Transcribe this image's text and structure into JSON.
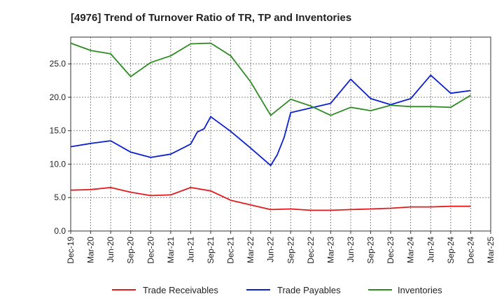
{
  "chart_data": {
    "type": "line",
    "title": "[4976]  Trend of Turnover Ratio of TR, TP and Inventories",
    "xlabel": "",
    "ylabel": "",
    "ylim": [
      0,
      29
    ],
    "yticks": [
      "0.0",
      "5.0",
      "10.0",
      "15.0",
      "20.0",
      "25.0"
    ],
    "categories": [
      "Dec-19",
      "Mar-20",
      "Jun-20",
      "Sep-20",
      "Dec-20",
      "Mar-21",
      "Jun-21",
      "Sep-21",
      "Dec-21",
      "Mar-22",
      "Jun-22",
      "Sep-22",
      "Dec-22",
      "Mar-23",
      "Jun-23",
      "Sep-23",
      "Dec-23",
      "Mar-24",
      "Jun-24",
      "Sep-24",
      "Dec-24",
      "Mar-25"
    ],
    "grid": true,
    "legend_position": "bottom",
    "series": [
      {
        "name": "Trade Receivables",
        "color": "#e31a1c",
        "points": [
          [
            0,
            6.1
          ],
          [
            1,
            6.2
          ],
          [
            2,
            6.5
          ],
          [
            3,
            5.8
          ],
          [
            4,
            5.3
          ],
          [
            5,
            5.4
          ],
          [
            6,
            6.5
          ],
          [
            7,
            6.0
          ],
          [
            8,
            4.6
          ],
          [
            9,
            3.9
          ],
          [
            10,
            3.2
          ],
          [
            11,
            3.3
          ],
          [
            12,
            3.1
          ],
          [
            13,
            3.1
          ],
          [
            14,
            3.2
          ],
          [
            15,
            3.3
          ],
          [
            16,
            3.4
          ],
          [
            17,
            3.6
          ],
          [
            18,
            3.6
          ],
          [
            19,
            3.7
          ],
          [
            20,
            3.7
          ]
        ]
      },
      {
        "name": "Trade Payables",
        "color": "#0b1fd1",
        "points": [
          [
            0,
            12.6
          ],
          [
            1,
            13.1
          ],
          [
            2,
            13.5
          ],
          [
            3,
            11.8
          ],
          [
            4,
            11.0
          ],
          [
            5,
            11.5
          ],
          [
            6,
            13.0
          ],
          [
            6.33,
            14.8
          ],
          [
            6.67,
            15.3
          ],
          [
            7,
            17.1
          ],
          [
            8,
            14.9
          ],
          [
            9,
            12.4
          ],
          [
            10,
            9.8
          ],
          [
            10.33,
            11.4
          ],
          [
            10.67,
            14.0
          ],
          [
            11,
            17.7
          ],
          [
            12,
            18.4
          ],
          [
            13,
            19.1
          ],
          [
            14,
            22.7
          ],
          [
            15,
            19.8
          ],
          [
            16,
            18.9
          ],
          [
            17,
            19.8
          ],
          [
            18,
            23.3
          ],
          [
            19,
            20.6
          ],
          [
            20,
            21.0
          ]
        ]
      },
      {
        "name": "Inventories",
        "color": "#2e8b22",
        "points": [
          [
            0,
            28.1
          ],
          [
            1,
            27.0
          ],
          [
            2,
            26.5
          ],
          [
            3,
            23.1
          ],
          [
            4,
            25.2
          ],
          [
            5,
            26.2
          ],
          [
            6,
            28.0
          ],
          [
            7,
            28.1
          ],
          [
            8,
            26.2
          ],
          [
            9,
            22.3
          ],
          [
            10,
            17.3
          ],
          [
            11,
            19.7
          ],
          [
            12,
            18.7
          ],
          [
            13,
            17.3
          ],
          [
            14,
            18.5
          ],
          [
            15,
            18.0
          ],
          [
            16,
            18.8
          ],
          [
            17,
            18.6
          ],
          [
            18,
            18.6
          ],
          [
            19,
            18.5
          ],
          [
            20,
            20.3
          ]
        ]
      }
    ]
  }
}
